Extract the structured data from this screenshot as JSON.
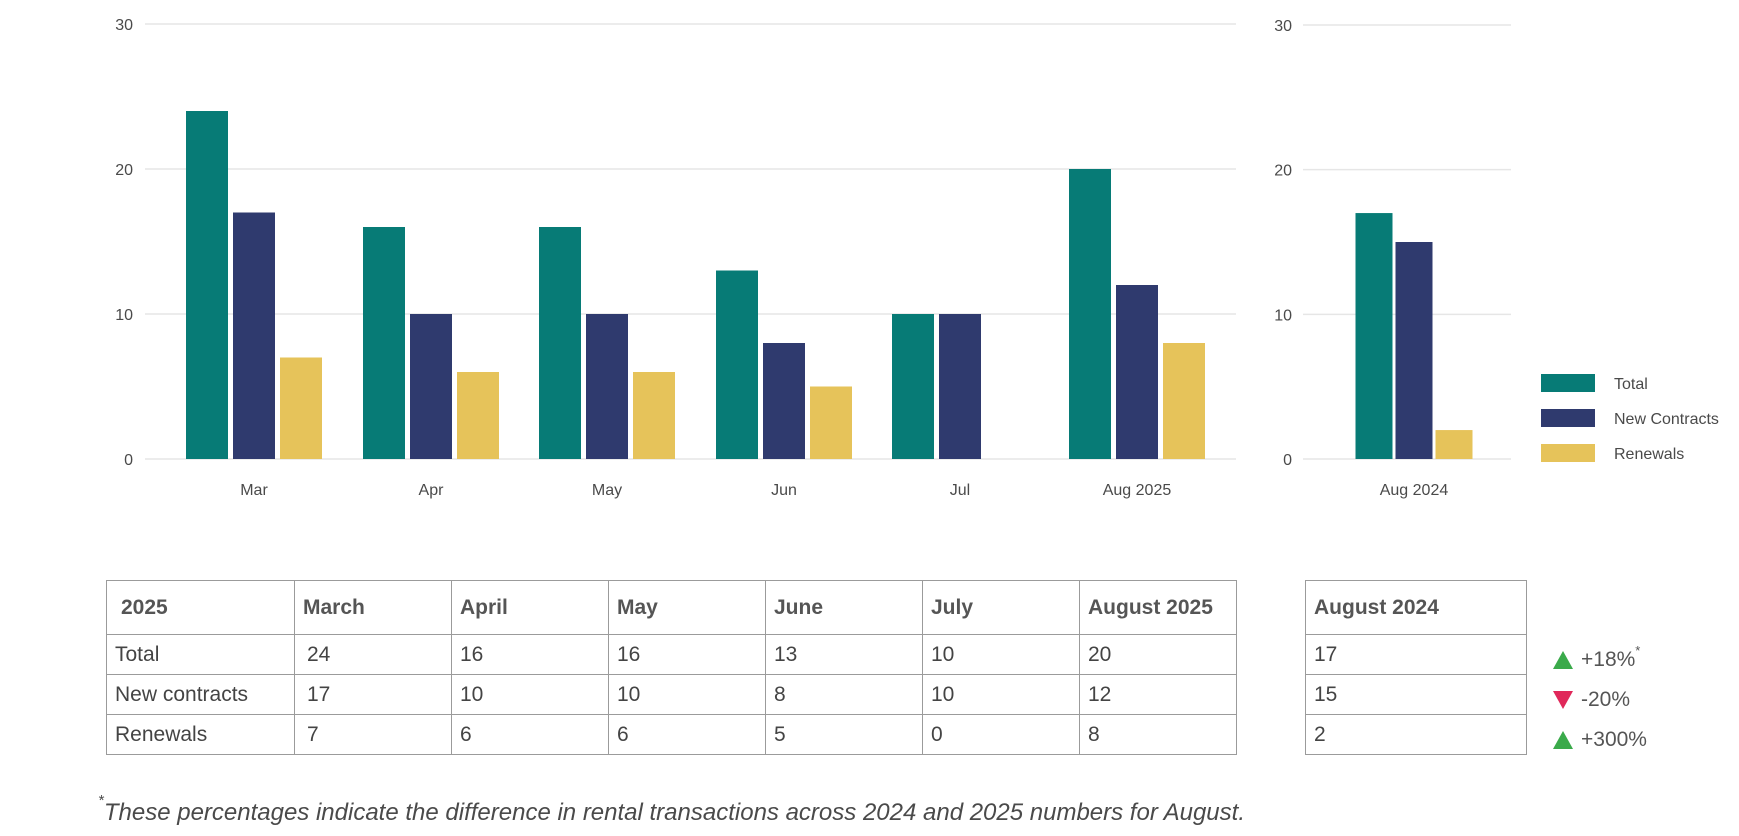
{
  "chart_data": [
    {
      "type": "bar",
      "categories": [
        "Mar",
        "Apr",
        "May",
        "Jun",
        "Jul",
        "Aug 2025"
      ],
      "series": [
        {
          "name": "Total",
          "values": [
            24,
            16,
            16,
            13,
            10,
            20
          ],
          "color": "#077b76"
        },
        {
          "name": "New Contracts",
          "values": [
            17,
            10,
            10,
            8,
            10,
            12
          ],
          "color": "#2f3a6e"
        },
        {
          "name": "Renewals",
          "values": [
            7,
            6,
            6,
            5,
            0,
            8
          ],
          "color": "#e6c35a"
        }
      ],
      "ylim": [
        0,
        30
      ],
      "yticks": [
        "0",
        "10",
        "20",
        "30"
      ],
      "grid": true
    },
    {
      "type": "bar",
      "categories": [
        "Aug 2024"
      ],
      "series": [
        {
          "name": "Total",
          "values": [
            17
          ],
          "color": "#077b76"
        },
        {
          "name": "New Contracts",
          "values": [
            15
          ],
          "color": "#2f3a6e"
        },
        {
          "name": "Renewals",
          "values": [
            2
          ],
          "color": "#e6c35a"
        }
      ],
      "ylim": [
        0,
        30
      ],
      "yticks": [
        "0",
        "10",
        "20",
        "30"
      ],
      "grid": true,
      "legend": "right"
    }
  ],
  "legend": [
    "Total",
    "New Contracts",
    "Renewals"
  ],
  "table_main": {
    "headers": [
      "2025",
      "March",
      "April",
      "May",
      "June",
      "July",
      "August 2025"
    ],
    "rows": [
      [
        "Total",
        "24",
        "16",
        "16",
        "13",
        "10",
        "20"
      ],
      [
        "New contracts",
        "17",
        "10",
        "10",
        "8",
        "10",
        "12"
      ],
      [
        "Renewals",
        "7",
        "6",
        "6",
        "5",
        "0",
        "8"
      ]
    ]
  },
  "table_prev": {
    "header": "August 2024",
    "values": [
      "17",
      "15",
      "2"
    ]
  },
  "changes": [
    {
      "direction": "up",
      "text": "+18%",
      "marker": "*"
    },
    {
      "direction": "down",
      "text": "-20%",
      "marker": ""
    },
    {
      "direction": "up",
      "text": "+300%",
      "marker": ""
    }
  ],
  "footnote": {
    "marker": "*",
    "text": "These percentages indicate the difference in rental transactions across 2024 and 2025 numbers for August."
  }
}
